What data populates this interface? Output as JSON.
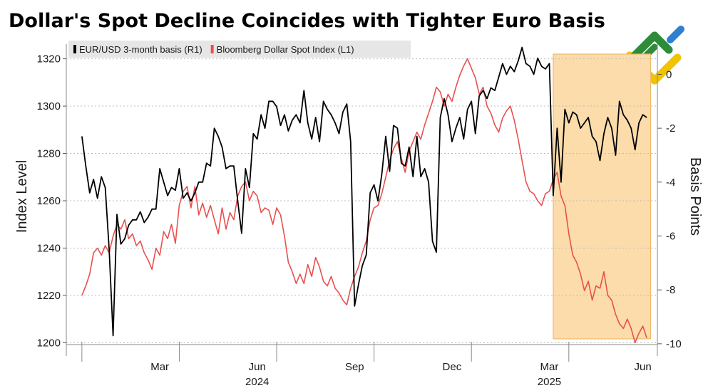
{
  "chart_data": {
    "type": "line",
    "title": "Dollar's Spot Decline Coincides with Tighter Euro Basis",
    "ylabel_left": "Index Level",
    "ylabel_right": "Basis Points",
    "ylim_left": [
      1195,
      1328
    ],
    "ylim_right": [
      -10.4,
      1.28
    ],
    "yticks_left": [
      1200,
      1220,
      1240,
      1260,
      1280,
      1300,
      1320
    ],
    "yticks_right": [
      0,
      -2,
      -4,
      -6,
      -8,
      -10
    ],
    "ytick_labels_right": [
      "0",
      "-2",
      "-4",
      "-6",
      "-8",
      "-10"
    ],
    "xlim": [
      2023.96,
      2025.47
    ],
    "month_ticks": [
      {
        "label": "Mar",
        "x": 2024.2
      },
      {
        "label": "Jun",
        "x": 2024.45
      },
      {
        "label": "Sep",
        "x": 2024.7
      },
      {
        "label": "Dec",
        "x": 2024.95
      },
      {
        "label": "Mar",
        "x": 2025.2
      },
      {
        "label": "Jun",
        "x": 2025.44
      }
    ],
    "year_labels": [
      {
        "label": "2024",
        "x": 2024.45
      },
      {
        "label": "2025",
        "x": 2025.2
      }
    ],
    "year_boundaries": [
      2024.0,
      2024.25,
      2024.5,
      2024.75,
      2025.0,
      2025.25
    ],
    "shaded_region": {
      "x_start": 2025.21,
      "x_end": 2025.46,
      "color": "#fbdcaa"
    },
    "legend": [
      {
        "name": "EUR/USD 3-month basis (R1)",
        "color": "#000000"
      },
      {
        "name": "Bloomberg Dollar Spot Index (L1)",
        "color": "#e8504f"
      }
    ],
    "series": [
      {
        "name": "EUR/USD 3-month basis (R1)",
        "axis": "right",
        "color": "#000000",
        "x": [
          2024.0,
          2024.01,
          2024.02,
          2024.03,
          2024.04,
          2024.05,
          2024.06,
          2024.07,
          2024.08,
          2024.09,
          2024.1,
          2024.11,
          2024.12,
          2024.13,
          2024.14,
          2024.15,
          2024.16,
          2024.17,
          2024.18,
          2024.19,
          2024.2,
          2024.21,
          2024.22,
          2024.23,
          2024.24,
          2024.25,
          2024.26,
          2024.27,
          2024.28,
          2024.29,
          2024.3,
          2024.31,
          2024.32,
          2024.33,
          2024.34,
          2024.35,
          2024.36,
          2024.37,
          2024.38,
          2024.39,
          2024.4,
          2024.41,
          2024.42,
          2024.43,
          2024.44,
          2024.45,
          2024.46,
          2024.47,
          2024.48,
          2024.49,
          2024.5,
          2024.51,
          2024.52,
          2024.53,
          2024.54,
          2024.55,
          2024.56,
          2024.57,
          2024.58,
          2024.59,
          2024.6,
          2024.61,
          2024.62,
          2024.63,
          2024.64,
          2024.65,
          2024.66,
          2024.67,
          2024.68,
          2024.69,
          2024.7,
          2024.71,
          2024.72,
          2024.73,
          2024.74,
          2024.75,
          2024.76,
          2024.77,
          2024.78,
          2024.79,
          2024.8,
          2024.81,
          2024.82,
          2024.83,
          2024.84,
          2024.85,
          2024.86,
          2024.87,
          2024.88,
          2024.89,
          2024.9,
          2024.91,
          2024.92,
          2024.93,
          2024.94,
          2024.95,
          2024.96,
          2024.97,
          2024.98,
          2024.99,
          2025.0,
          2025.01,
          2025.02,
          2025.03,
          2025.04,
          2025.05,
          2025.06,
          2025.07,
          2025.08,
          2025.09,
          2025.1,
          2025.11,
          2025.12,
          2025.13,
          2025.14,
          2025.15,
          2025.16,
          2025.17,
          2025.18,
          2025.19,
          2025.2,
          2025.21,
          2025.22,
          2025.23,
          2025.24,
          2025.25,
          2025.26,
          2025.27,
          2025.28,
          2025.29,
          2025.3,
          2025.31,
          2025.32,
          2025.33,
          2025.34,
          2025.35,
          2025.36,
          2025.37,
          2025.38,
          2025.39,
          2025.4,
          2025.41,
          2025.42,
          2025.43,
          2025.44,
          2025.45
        ],
        "values": [
          -2.3,
          -3.4,
          -4.4,
          -3.9,
          -4.6,
          -3.8,
          -4.2,
          -6.5,
          -9.7,
          -5.2,
          -6.3,
          -6.1,
          -5.6,
          -5.4,
          -5.4,
          -5.1,
          -5.5,
          -5.3,
          -5.0,
          -5.0,
          -3.5,
          -4.0,
          -4.5,
          -4.2,
          -4.3,
          -3.5,
          -4.6,
          -4.4,
          -4.7,
          -4.4,
          -4.0,
          -4.0,
          -3.3,
          -3.4,
          -2.0,
          -2.3,
          -2.7,
          -3.5,
          -3.4,
          -3.4,
          -4.7,
          -5.9,
          -3.5,
          -4.2,
          -2.2,
          -2.4,
          -1.5,
          -2.0,
          -1.0,
          -1.0,
          -1.2,
          -1.9,
          -1.5,
          -2.1,
          -1.7,
          -1.5,
          -1.8,
          -0.6,
          -1.8,
          -2.4,
          -1.6,
          -2.5,
          -1.0,
          -1.3,
          -1.5,
          -1.8,
          -2.2,
          -1.4,
          -1.1,
          -2.5,
          -8.6,
          -7.8,
          -7.1,
          -6.7,
          -4.4,
          -4.1,
          -4.7,
          -3.7,
          -2.3,
          -3.6,
          -1.9,
          -2.0,
          -3.3,
          -3.4,
          -2.7,
          -3.8,
          -2.3,
          -3.8,
          -3.5,
          -4.0,
          -6.2,
          -6.6,
          -1.6,
          -0.9,
          -1.5,
          -2.5,
          -2.0,
          -1.6,
          -2.4,
          -1.3,
          -1.0,
          -2.2,
          -0.8,
          -0.6,
          -0.9,
          -0.5,
          -0.6,
          -0.1,
          0.4,
          0.0,
          0.3,
          0.1,
          0.5,
          1.0,
          0.4,
          0.3,
          0.0,
          0.6,
          0.3,
          0.2,
          0.4,
          -4.5,
          -2.0,
          -4.0,
          -1.3,
          -1.8,
          -1.4,
          -1.5,
          -2.0,
          -1.8,
          -1.6,
          -2.3,
          -2.5,
          -3.2,
          -2.2,
          -1.6,
          -2.0,
          -3.0,
          -1.0,
          -1.5,
          -1.7,
          -2.0,
          -2.8,
          -1.8,
          -1.5,
          -1.6
        ]
      },
      {
        "name": "Bloomberg Dollar Spot Index (L1)",
        "axis": "left",
        "color": "#e8504f",
        "x": [
          2024.0,
          2024.01,
          2024.02,
          2024.03,
          2024.04,
          2024.05,
          2024.06,
          2024.07,
          2024.08,
          2024.09,
          2024.1,
          2024.11,
          2024.12,
          2024.13,
          2024.14,
          2024.15,
          2024.16,
          2024.17,
          2024.18,
          2024.19,
          2024.2,
          2024.21,
          2024.22,
          2024.23,
          2024.24,
          2024.25,
          2024.26,
          2024.27,
          2024.28,
          2024.29,
          2024.3,
          2024.31,
          2024.32,
          2024.33,
          2024.34,
          2024.35,
          2024.36,
          2024.37,
          2024.38,
          2024.39,
          2024.4,
          2024.41,
          2024.42,
          2024.43,
          2024.44,
          2024.45,
          2024.46,
          2024.47,
          2024.48,
          2024.49,
          2024.5,
          2024.51,
          2024.52,
          2024.53,
          2024.54,
          2024.55,
          2024.56,
          2024.57,
          2024.58,
          2024.59,
          2024.6,
          2024.61,
          2024.62,
          2024.63,
          2024.64,
          2024.65,
          2024.66,
          2024.67,
          2024.68,
          2024.69,
          2024.7,
          2024.71,
          2024.72,
          2024.73,
          2024.74,
          2024.75,
          2024.76,
          2024.77,
          2024.78,
          2024.79,
          2024.8,
          2024.81,
          2024.82,
          2024.83,
          2024.84,
          2024.85,
          2024.86,
          2024.87,
          2024.88,
          2024.89,
          2024.9,
          2024.91,
          2024.92,
          2024.93,
          2024.94,
          2024.95,
          2024.96,
          2024.97,
          2024.98,
          2024.99,
          2025.0,
          2025.01,
          2025.02,
          2025.03,
          2025.04,
          2025.05,
          2025.06,
          2025.07,
          2025.08,
          2025.09,
          2025.1,
          2025.11,
          2025.12,
          2025.13,
          2025.14,
          2025.15,
          2025.16,
          2025.17,
          2025.18,
          2025.19,
          2025.2,
          2025.21,
          2025.22,
          2025.23,
          2025.24,
          2025.25,
          2025.26,
          2025.27,
          2025.28,
          2025.29,
          2025.3,
          2025.31,
          2025.32,
          2025.33,
          2025.34,
          2025.35,
          2025.36,
          2025.37,
          2025.38,
          2025.39,
          2025.4,
          2025.41,
          2025.42,
          2025.43,
          2025.44,
          2025.45
        ],
        "values": [
          1220,
          1224,
          1229,
          1238,
          1240,
          1237,
          1241,
          1238,
          1245,
          1250,
          1248,
          1252,
          1244,
          1246,
          1241,
          1243,
          1238,
          1235,
          1231,
          1240,
          1237,
          1247,
          1244,
          1250,
          1242,
          1258,
          1264,
          1266,
          1257,
          1266,
          1254,
          1259,
          1253,
          1258,
          1252,
          1246,
          1257,
          1248,
          1255,
          1252,
          1262,
          1266,
          1268,
          1260,
          1264,
          1262,
          1255,
          1257,
          1256,
          1250,
          1257,
          1254,
          1245,
          1234,
          1230,
          1225,
          1229,
          1225,
          1233,
          1228,
          1236,
          1232,
          1226,
          1224,
          1228,
          1223,
          1221,
          1218,
          1216,
          1223,
          1228,
          1232,
          1238,
          1243,
          1252,
          1257,
          1258,
          1263,
          1270,
          1277,
          1282,
          1285,
          1278,
          1272,
          1281,
          1285,
          1289,
          1286,
          1292,
          1297,
          1302,
          1308,
          1306,
          1300,
          1305,
          1302,
          1308,
          1313,
          1317,
          1320,
          1316,
          1312,
          1305,
          1308,
          1300,
          1297,
          1292,
          1289,
          1295,
          1298,
          1300,
          1294,
          1286,
          1277,
          1268,
          1264,
          1263,
          1260,
          1258,
          1263,
          1264,
          1269,
          1272,
          1262,
          1258,
          1246,
          1237,
          1234,
          1229,
          1222,
          1226,
          1218,
          1224,
          1223,
          1230,
          1220,
          1218,
          1212,
          1208,
          1206,
          1210,
          1206,
          1200,
          1204,
          1207,
          1202
        ]
      }
    ]
  }
}
